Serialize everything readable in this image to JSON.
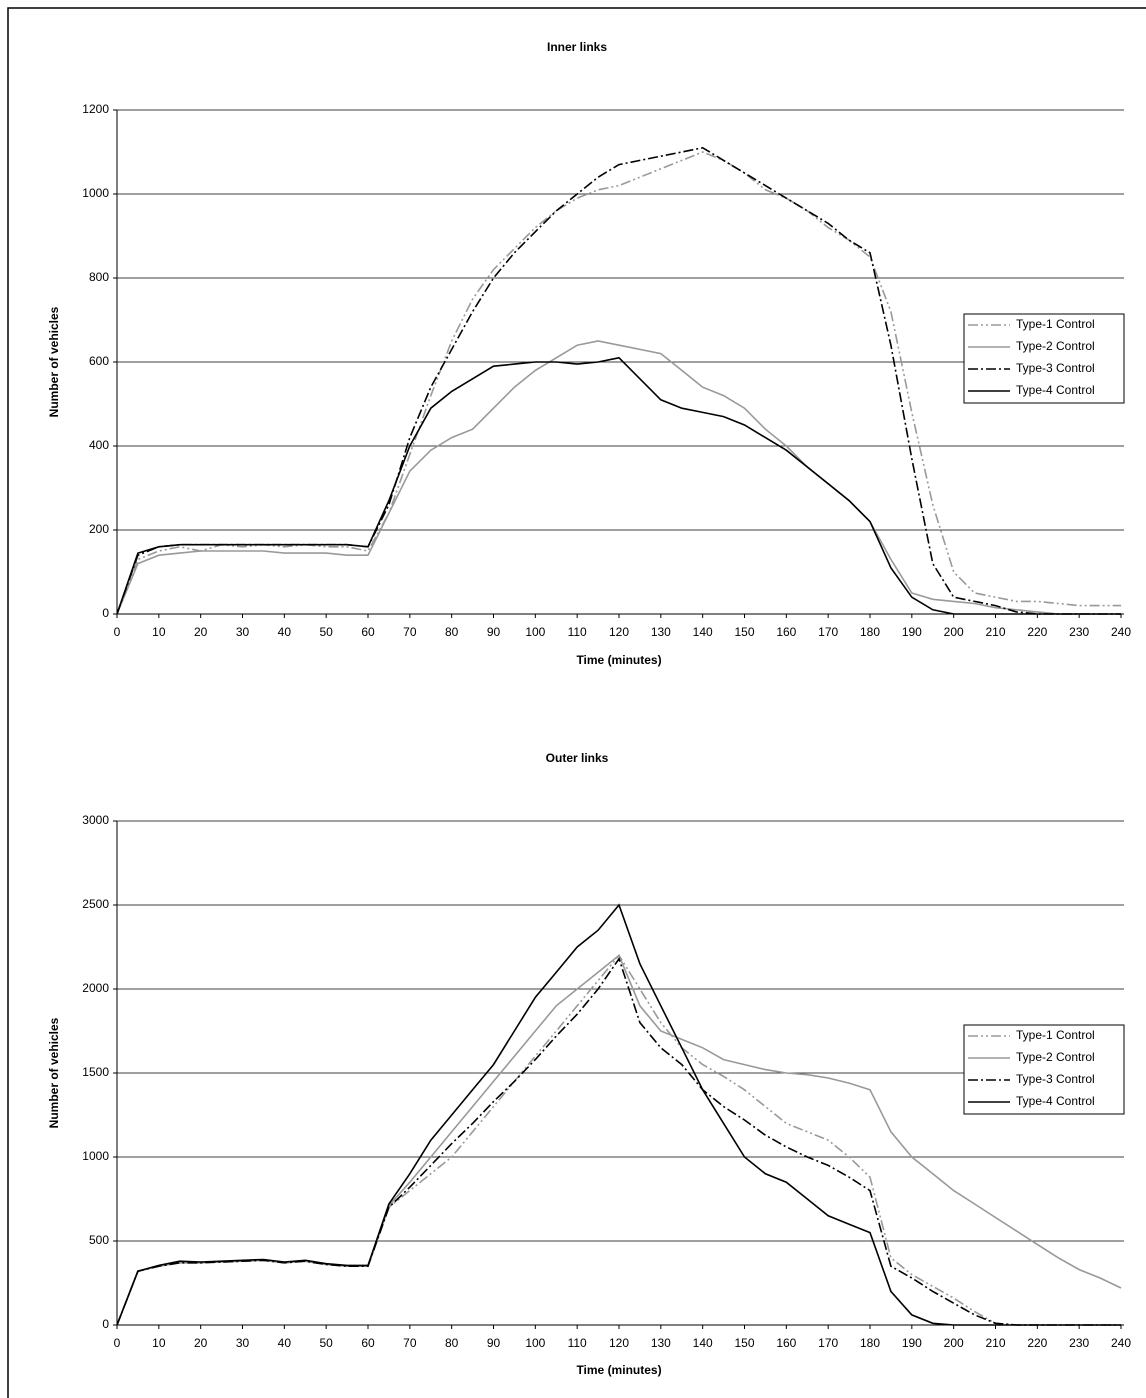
{
  "chart_data": [
    {
      "type": "line",
      "title": "Inner links",
      "x_label": "Time (minutes)",
      "y_label": "Number of vehicles",
      "x": [
        0,
        5,
        10,
        15,
        20,
        25,
        30,
        35,
        40,
        45,
        50,
        55,
        60,
        65,
        70,
        75,
        80,
        85,
        90,
        95,
        100,
        105,
        110,
        115,
        120,
        125,
        130,
        135,
        140,
        145,
        150,
        155,
        160,
        165,
        170,
        175,
        180,
        185,
        190,
        195,
        200,
        205,
        210,
        215,
        220,
        225,
        230,
        235,
        240
      ],
      "xlim": [
        0,
        240
      ],
      "xticks": [
        0,
        10,
        20,
        30,
        40,
        50,
        60,
        70,
        80,
        90,
        100,
        110,
        120,
        130,
        140,
        150,
        160,
        170,
        180,
        190,
        200,
        210,
        220,
        230,
        240
      ],
      "ylim": [
        0,
        1200
      ],
      "yticks": [
        0,
        200,
        400,
        600,
        800,
        1000,
        1200
      ],
      "grid": true,
      "legend": "right",
      "series": [
        {
          "name": "Type-1 Control",
          "color": "#999999",
          "dash": "10 3 2 3 2 3",
          "values": [
            0,
            130,
            150,
            160,
            150,
            165,
            160,
            165,
            160,
            165,
            160,
            160,
            150,
            240,
            380,
            520,
            650,
            750,
            820,
            870,
            920,
            960,
            990,
            1010,
            1020,
            1040,
            1060,
            1080,
            1100,
            1080,
            1050,
            1010,
            990,
            960,
            920,
            890,
            850,
            720,
            480,
            260,
            100,
            50,
            40,
            30,
            30,
            25,
            20,
            20,
            20
          ]
        },
        {
          "name": "Type-2 Control",
          "color": "#999999",
          "dash": "",
          "values": [
            0,
            120,
            140,
            145,
            150,
            150,
            150,
            150,
            145,
            145,
            145,
            140,
            140,
            240,
            340,
            390,
            420,
            440,
            490,
            540,
            580,
            610,
            640,
            650,
            640,
            630,
            620,
            580,
            540,
            520,
            490,
            440,
            400,
            350,
            310,
            270,
            220,
            130,
            50,
            35,
            30,
            25,
            15,
            10,
            5,
            0,
            0,
            0,
            0
          ]
        },
        {
          "name": "Type-3 Control",
          "color": "#000000",
          "dash": "10 3 2 3",
          "values": [
            0,
            140,
            160,
            165,
            165,
            165,
            165,
            165,
            165,
            165,
            165,
            165,
            160,
            260,
            420,
            540,
            630,
            720,
            800,
            860,
            910,
            960,
            1000,
            1040,
            1070,
            1080,
            1090,
            1100,
            1110,
            1080,
            1050,
            1020,
            990,
            960,
            930,
            890,
            860,
            640,
            370,
            120,
            40,
            30,
            20,
            5,
            0,
            0,
            0,
            0,
            0
          ]
        },
        {
          "name": "Type-4 Control",
          "color": "#000000",
          "dash": "",
          "values": [
            0,
            145,
            160,
            165,
            165,
            165,
            165,
            165,
            165,
            165,
            165,
            165,
            160,
            270,
            400,
            490,
            530,
            560,
            590,
            595,
            600,
            600,
            595,
            600,
            610,
            560,
            510,
            490,
            480,
            470,
            450,
            420,
            390,
            350,
            310,
            270,
            220,
            110,
            40,
            10,
            0,
            0,
            0,
            0,
            0,
            0,
            0,
            0,
            0
          ]
        }
      ]
    },
    {
      "type": "line",
      "title": "Outer links",
      "x_label": "Time (minutes)",
      "y_label": "Number of vehicles",
      "x": [
        0,
        5,
        10,
        15,
        20,
        25,
        30,
        35,
        40,
        45,
        50,
        55,
        60,
        65,
        70,
        75,
        80,
        85,
        90,
        95,
        100,
        105,
        110,
        115,
        120,
        125,
        130,
        135,
        140,
        145,
        150,
        155,
        160,
        165,
        170,
        175,
        180,
        185,
        190,
        195,
        200,
        205,
        210,
        215,
        220,
        225,
        230,
        235,
        240
      ],
      "xlim": [
        0,
        240
      ],
      "xticks": [
        0,
        10,
        20,
        30,
        40,
        50,
        60,
        70,
        80,
        90,
        100,
        110,
        120,
        130,
        140,
        150,
        160,
        170,
        180,
        190,
        200,
        210,
        220,
        230,
        240
      ],
      "ylim": [
        0,
        3000
      ],
      "yticks": [
        0,
        500,
        1000,
        1500,
        2000,
        2500,
        3000
      ],
      "grid": true,
      "legend": "right",
      "series": [
        {
          "name": "Type-1 Control",
          "color": "#999999",
          "dash": "10 3 2 3 2 3",
          "values": [
            0,
            320,
            350,
            370,
            370,
            375,
            380,
            385,
            370,
            380,
            360,
            350,
            350,
            700,
            800,
            900,
            1000,
            1150,
            1300,
            1450,
            1600,
            1750,
            1900,
            2050,
            2200,
            2000,
            1800,
            1650,
            1550,
            1480,
            1400,
            1300,
            1200,
            1150,
            1100,
            1000,
            880,
            400,
            300,
            230,
            160,
            80,
            10,
            0,
            0,
            0,
            0,
            0,
            0
          ]
        },
        {
          "name": "Type-2 Control",
          "color": "#999999",
          "dash": "",
          "values": [
            0,
            320,
            350,
            370,
            370,
            375,
            380,
            385,
            370,
            380,
            360,
            350,
            350,
            710,
            850,
            1000,
            1150,
            1300,
            1450,
            1600,
            1750,
            1900,
            2000,
            2100,
            2200,
            1900,
            1750,
            1700,
            1650,
            1580,
            1550,
            1520,
            1500,
            1490,
            1470,
            1440,
            1400,
            1150,
            1000,
            900,
            800,
            720,
            640,
            560,
            480,
            400,
            330,
            280,
            220
          ]
        },
        {
          "name": "Type-3 Control",
          "color": "#000000",
          "dash": "10 3 2 3",
          "values": [
            0,
            320,
            350,
            370,
            370,
            375,
            380,
            385,
            370,
            380,
            360,
            350,
            350,
            700,
            820,
            950,
            1080,
            1200,
            1330,
            1450,
            1580,
            1720,
            1850,
            2000,
            2180,
            1800,
            1650,
            1550,
            1400,
            1300,
            1220,
            1130,
            1060,
            1000,
            950,
            880,
            800,
            350,
            280,
            200,
            130,
            60,
            10,
            0,
            0,
            0,
            0,
            0,
            0
          ]
        },
        {
          "name": "Type-4 Control",
          "color": "#000000",
          "dash": "",
          "values": [
            0,
            320,
            355,
            380,
            375,
            380,
            385,
            390,
            375,
            385,
            365,
            355,
            355,
            720,
            900,
            1100,
            1250,
            1400,
            1550,
            1750,
            1950,
            2100,
            2250,
            2350,
            2500,
            2150,
            1900,
            1650,
            1400,
            1200,
            1000,
            900,
            850,
            750,
            650,
            600,
            550,
            200,
            60,
            10,
            0,
            0,
            0,
            0,
            0,
            0,
            0,
            0,
            0
          ]
        }
      ]
    }
  ]
}
